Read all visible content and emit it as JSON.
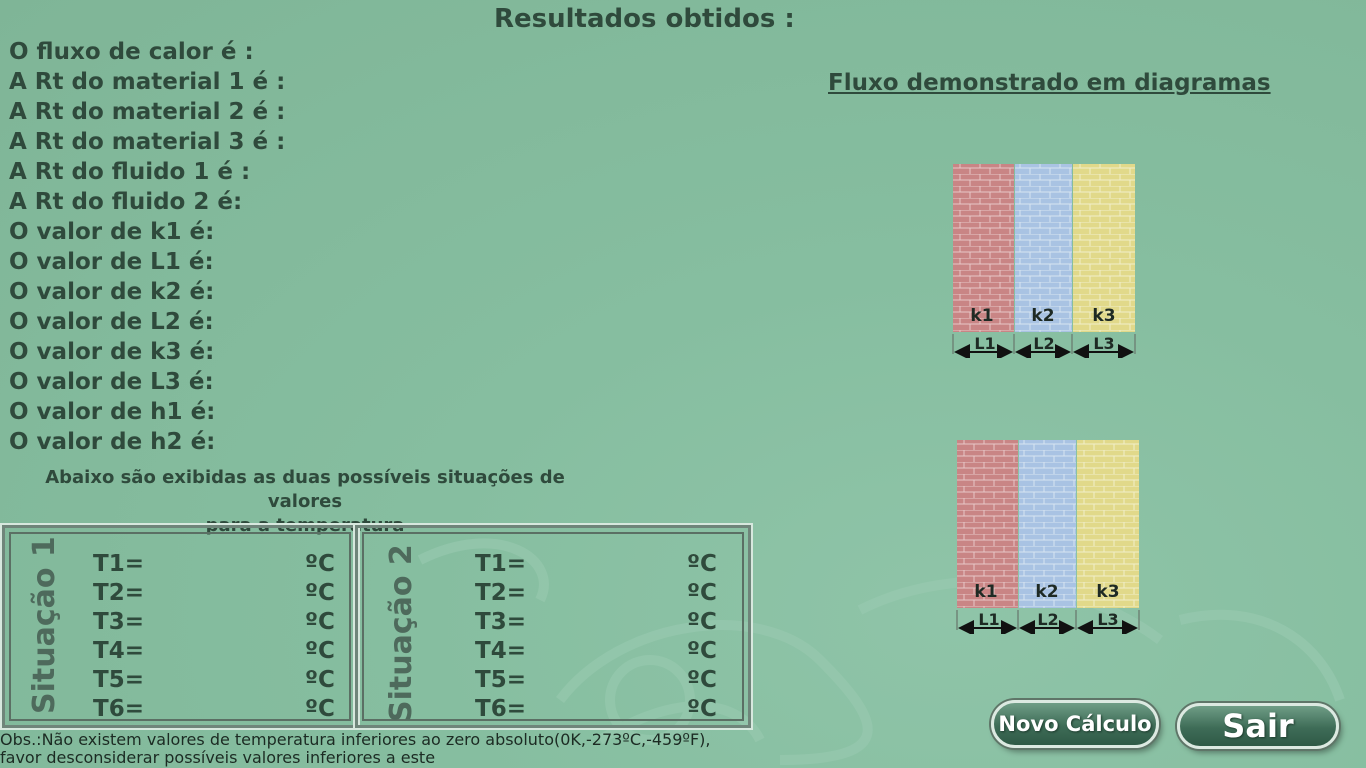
{
  "page": {
    "title": "Resultados obtidos :"
  },
  "results": [
    "O fluxo de calor é :",
    "A Rt do material 1 é :",
    "A Rt do material 2 é :",
    "A Rt do material 3 é :",
    "A Rt do fluido 1 é :",
    "A Rt do fluido 2 é:",
    "O valor de k1 é:",
    "O valor de L1 é:",
    "O valor de k2 é:",
    "O valor de L2 é:",
    "O valor de k3 é:",
    "O valor de L3 é:",
    "O valor de h1 é:",
    "O valor de h2 é:"
  ],
  "note": {
    "line1": "Abaixo são exibidas as duas possíveis situações de valores",
    "line2": "para a temperatura"
  },
  "situations": [
    {
      "label": "Situação 1",
      "rows": [
        {
          "label": "T1=",
          "unit": "ºC"
        },
        {
          "label": "T2=",
          "unit": "ºC"
        },
        {
          "label": "T3=",
          "unit": "ºC"
        },
        {
          "label": "T4=",
          "unit": "ºC"
        },
        {
          "label": "T5=",
          "unit": "ºC"
        },
        {
          "label": "T6=",
          "unit": "ºC"
        }
      ]
    },
    {
      "label": "Situação 2",
      "rows": [
        {
          "label": "T1=",
          "unit": "ºC"
        },
        {
          "label": "T2=",
          "unit": "ºC"
        },
        {
          "label": "T3=",
          "unit": "ºC"
        },
        {
          "label": "T4=",
          "unit": "ºC"
        },
        {
          "label": "T5=",
          "unit": "ºC"
        },
        {
          "label": "T6=",
          "unit": "ºC"
        }
      ]
    }
  ],
  "diagrams": {
    "title": "Fluxo demonstrado em diagramas",
    "walls": [
      {
        "k": "k1",
        "L": "L1",
        "color": "#c98585"
      },
      {
        "k": "k2",
        "L": "L2",
        "color": "#a9c3e3"
      },
      {
        "k": "k3",
        "L": "L3",
        "color": "#e1d98a"
      }
    ]
  },
  "footnote": {
    "line1": "Obs.:Não existem valores de temperatura inferiores ao zero absoluto(0K,-273ºC,-459ºF),",
    "line2": "favor desconsiderar possíveis valores inferiores a este"
  },
  "buttons": {
    "novo": "Novo Cálculo",
    "sair": "Sair"
  },
  "colors": {
    "background": "#86bea0",
    "text": "#2f4a3c",
    "button": "#3e6c57"
  }
}
